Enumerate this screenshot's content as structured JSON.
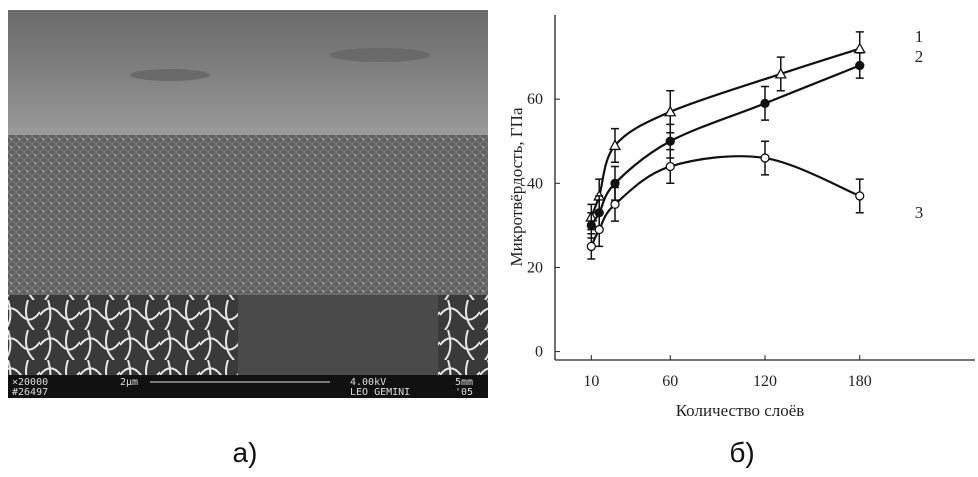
{
  "image": {
    "bar_texts": [
      "×20000",
      "#26497",
      "2µm",
      "4.00kV",
      "LEO GEMINI",
      "5mm",
      "'05"
    ]
  },
  "captions": [
    "а)",
    "б)"
  ],
  "chart_data": {
    "type": "line",
    "y_label": "Микротвёрдость, ГПа",
    "x_label": "Количество слоёв",
    "xlim": [
      -13,
      253
    ],
    "ylim": [
      -2,
      80
    ],
    "xticks": [
      10,
      60,
      120,
      180
    ],
    "yticks": [
      0,
      20,
      40,
      60
    ],
    "series": [
      {
        "name": "1",
        "color": "#111111",
        "marker": "triangle",
        "x": [
          10,
          15,
          25,
          60,
          130,
          180
        ],
        "values": [
          32,
          37,
          49,
          57,
          66,
          72
        ],
        "errors": [
          3,
          4,
          4,
          5,
          4,
          4
        ]
      },
      {
        "name": "2",
        "color": "#111111",
        "marker": "filled-circle",
        "x": [
          10,
          15,
          25,
          60,
          120,
          180
        ],
        "values": [
          30,
          33,
          40,
          50,
          59,
          68
        ],
        "errors": [
          3,
          4,
          4,
          4,
          4,
          3
        ]
      },
      {
        "name": "3",
        "color": "#111111",
        "marker": "circle",
        "x": [
          10,
          15,
          25,
          60,
          120,
          180
        ],
        "values": [
          25,
          29,
          35,
          44,
          46,
          37
        ],
        "errors": [
          3,
          4,
          4,
          4,
          4,
          4
        ]
      }
    ]
  }
}
